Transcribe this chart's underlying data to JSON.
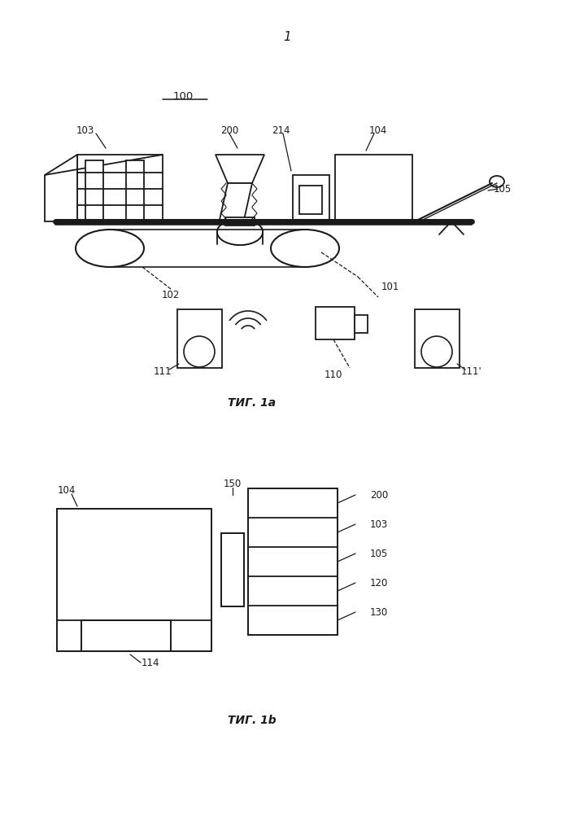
{
  "fig_title": "1",
  "fig1a_label": "ΤИГ. 1a",
  "fig1b_label": "ΤИГ. 1b",
  "label_100": "100",
  "label_101": "101",
  "label_102": "102",
  "label_103": "103",
  "label_104": "104",
  "label_105": "105",
  "label_110": "110",
  "label_111": "111",
  "label_111p": "111'",
  "label_114": "114",
  "label_120": "120",
  "label_130": "130",
  "label_150": "150",
  "label_200": "200",
  "label_214": "214",
  "bg_color": "#ffffff",
  "line_color": "#1a1a1a",
  "text_color": "#1a1a1a"
}
